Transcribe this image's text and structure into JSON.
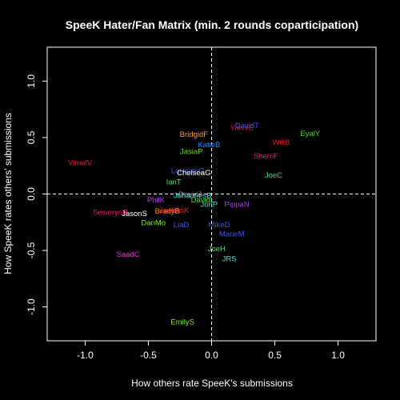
{
  "chart_data": {
    "type": "scatter",
    "title": "SpeeK Hater/Fan Matrix (min. 2 rounds coparticipation)",
    "xlabel": "How others rate SpeeK's submissions",
    "ylabel": "How SpeeK rates others' submissions",
    "xlim": [
      -1.3,
      1.3
    ],
    "ylim": [
      -1.3,
      1.3
    ],
    "xticks": [
      "-1.0",
      "-0.5",
      "0.0",
      "0.5",
      "1.0"
    ],
    "yticks": [
      "-1.0",
      "-0.5",
      "0.0",
      "0.5",
      "1.0"
    ],
    "xtick_values": [
      -1.0,
      -0.5,
      0.0,
      0.5,
      1.0
    ],
    "ytick_values": [
      -1.0,
      -0.5,
      0.0,
      0.5,
      1.0
    ],
    "reference_lines": {
      "x": 0,
      "y": 0,
      "style": "dashed"
    },
    "background": "#000000",
    "foreground": "#ffffff",
    "points": [
      {
        "label": "YanivE",
        "x": 0.24,
        "y": 0.59,
        "color": "#e01a4f"
      },
      {
        "label": "DavidT",
        "x": 0.28,
        "y": 0.61,
        "color": "#3355ff"
      },
      {
        "label": "EyalY",
        "x": 0.78,
        "y": 0.54,
        "color": "#44dd22"
      },
      {
        "label": "WillB",
        "x": 0.55,
        "y": 0.46,
        "color": "#ee1133"
      },
      {
        "label": "SherriF",
        "x": 0.43,
        "y": 0.34,
        "color": "#ee1177"
      },
      {
        "label": "JoeC",
        "x": 0.49,
        "y": 0.17,
        "color": "#22dd88"
      },
      {
        "label": "BridgidF",
        "x": -0.14,
        "y": 0.53,
        "color": "#ff9922"
      },
      {
        "label": "KatieB",
        "x": -0.02,
        "y": 0.44,
        "color": "#2288ff"
      },
      {
        "label": "JasiaP",
        "x": -0.16,
        "y": 0.38,
        "color": "#66dd22"
      },
      {
        "label": "VimalV",
        "x": -1.04,
        "y": 0.28,
        "color": "#ee1144"
      },
      {
        "label": "LorenzoC",
        "x": -0.19,
        "y": 0.21,
        "color": "#3355ff"
      },
      {
        "label": "ChelseaG",
        "x": -0.14,
        "y": 0.19,
        "color": "#ffffff"
      },
      {
        "label": "IanT",
        "x": -0.3,
        "y": 0.11,
        "color": "#55dd55"
      },
      {
        "label": "JohannesB",
        "x": -0.15,
        "y": -0.01,
        "color": "#33dddd"
      },
      {
        "label": "DavidJ",
        "x": -0.17,
        "y": 0.0,
        "color": "#888888"
      },
      {
        "label": "PhilK",
        "x": -0.44,
        "y": -0.05,
        "color": "#aa44ee"
      },
      {
        "label": "DavidL",
        "x": -0.07,
        "y": -0.05,
        "color": "#44dd44"
      },
      {
        "label": "JonP",
        "x": -0.02,
        "y": -0.09,
        "color": "#33dddd"
      },
      {
        "label": "PippaN",
        "x": 0.2,
        "y": -0.09,
        "color": "#aa33ee"
      },
      {
        "label": "JackA",
        "x": -0.33,
        "y": -0.14,
        "color": "#ee1177"
      },
      {
        "label": "KrisK",
        "x": -0.25,
        "y": -0.14,
        "color": "#ee2222"
      },
      {
        "label": "BradyB",
        "x": -0.35,
        "y": -0.15,
        "color": "#ff8811"
      },
      {
        "label": "SewerynR",
        "x": -0.8,
        "y": -0.16,
        "color": "#ee1177"
      },
      {
        "label": "JasonS",
        "x": -0.61,
        "y": -0.17,
        "color": "#ffffff"
      },
      {
        "label": "DanMo",
        "x": -0.46,
        "y": -0.25,
        "color": "#77ee22"
      },
      {
        "label": "LiaD",
        "x": -0.24,
        "y": -0.27,
        "color": "#3355ff"
      },
      {
        "label": "MikeD",
        "x": 0.06,
        "y": -0.27,
        "color": "#3355ff"
      },
      {
        "label": "MarieM",
        "x": 0.16,
        "y": -0.35,
        "color": "#3355ff"
      },
      {
        "label": "JoeH",
        "x": 0.04,
        "y": -0.48,
        "color": "#55dd55"
      },
      {
        "label": "SaadC",
        "x": -0.66,
        "y": -0.53,
        "color": "#dd33dd"
      },
      {
        "label": "JRS",
        "x": 0.14,
        "y": -0.57,
        "color": "#33dddd"
      },
      {
        "label": "EmilyS",
        "x": -0.23,
        "y": -1.13,
        "color": "#77ee22"
      }
    ]
  }
}
